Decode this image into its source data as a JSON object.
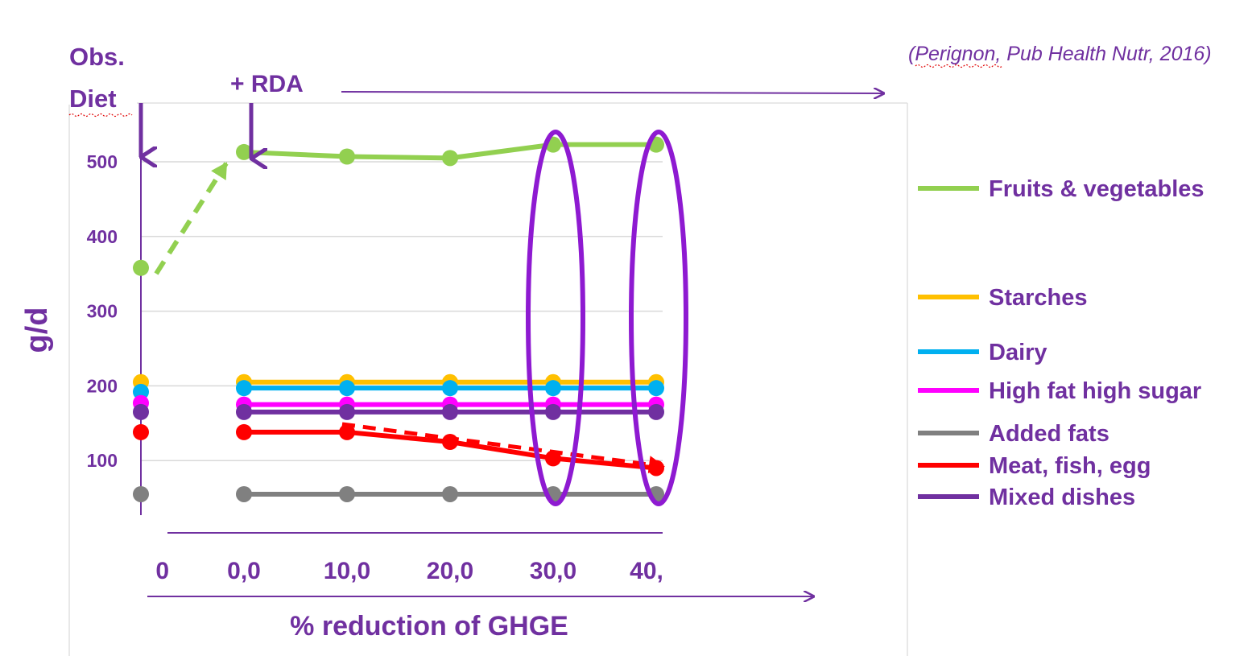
{
  "citation": "(Perignon, Pub Health Nutr, 2016)",
  "annotations": {
    "obs_diet_line1": "Obs.",
    "obs_diet_line2": "Diet",
    "rda": "+ RDA"
  },
  "colors": {
    "text": "#7030a0",
    "grid": "#d9d9d9",
    "arrow": "#7030a0",
    "highlight_ellipse": "#8e1ad1"
  },
  "chart_data": {
    "type": "line",
    "xlabel": "% reduction of GHGE",
    "ylabel": "g/d",
    "x_tick_labels": [
      "0",
      "0,0",
      "10,0",
      "20,0",
      "30,0",
      "40,"
    ],
    "x_categories": [
      "Obs. Diet",
      "0",
      "10",
      "20",
      "30",
      "40"
    ],
    "y_ticks": [
      100,
      200,
      300,
      400,
      500
    ],
    "ylim": [
      0,
      540
    ],
    "grid": true,
    "legend_position": "right",
    "series": [
      {
        "name": "Fruits & vegetables",
        "color": "#92d050",
        "values": [
          358,
          513,
          507,
          505,
          523,
          523
        ]
      },
      {
        "name": "Starches",
        "color": "#ffc000",
        "values": [
          205,
          205,
          205,
          205,
          205,
          205
        ]
      },
      {
        "name": "Dairy",
        "color": "#00b0f0",
        "values": [
          192,
          197,
          197,
          197,
          197,
          197
        ]
      },
      {
        "name": "High fat high sugar",
        "color": "#ff00ff",
        "values": [
          177,
          175,
          175,
          175,
          175,
          175
        ]
      },
      {
        "name": "Added fats",
        "color": "#808080",
        "values": [
          55,
          55,
          55,
          55,
          55,
          55
        ]
      },
      {
        "name": "Meat, fish, egg",
        "color": "#ff0000",
        "values": [
          138,
          138,
          138,
          125,
          103,
          90
        ]
      },
      {
        "name": "Mixed dishes",
        "color": "#7030a0",
        "values": [
          165,
          165,
          165,
          165,
          165,
          165
        ]
      }
    ],
    "highlighted_categories": [
      "30",
      "40"
    ]
  }
}
